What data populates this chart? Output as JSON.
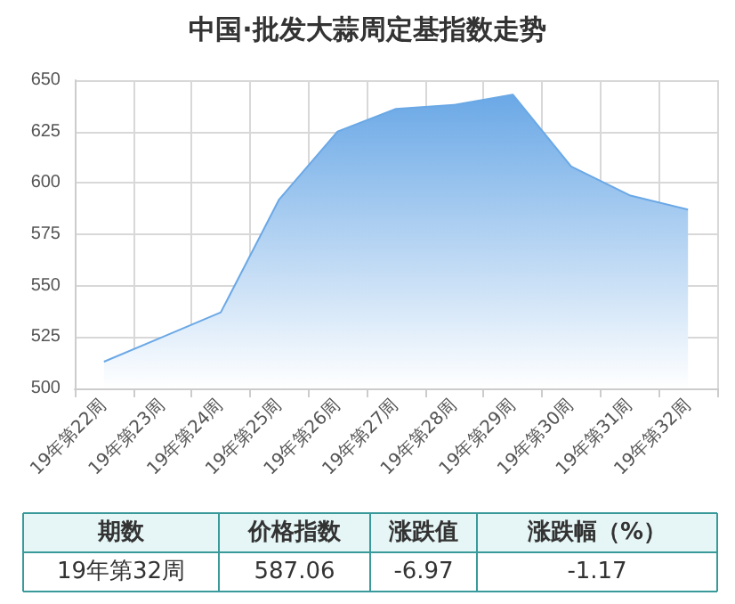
{
  "chart_data": {
    "type": "area",
    "title": "中国·批发大蒜周定基指数走势",
    "categories": [
      "19年第22周",
      "19年第23周",
      "19年第24周",
      "19年第25周",
      "19年第26周",
      "19年第27周",
      "19年第28周",
      "19年第29周",
      "19年第30周",
      "19年第31周",
      "19年第32周"
    ],
    "series": [
      {
        "color": "#6aa8e6",
        "values": [
          513,
          525,
          537,
          592,
          625,
          636,
          638,
          643,
          608,
          594,
          587.06
        ]
      }
    ],
    "ylim": [
      500,
      650
    ],
    "yticks": [
      500,
      525,
      550,
      575,
      600,
      625,
      650
    ],
    "grid": true,
    "marker": "none",
    "line_style": "solid",
    "annotations": [
      "期数",
      "价格指数",
      "涨跌值",
      "涨跌幅（%）",
      "19年第32周",
      "587.06",
      "-6.97",
      "-1.17"
    ]
  }
}
